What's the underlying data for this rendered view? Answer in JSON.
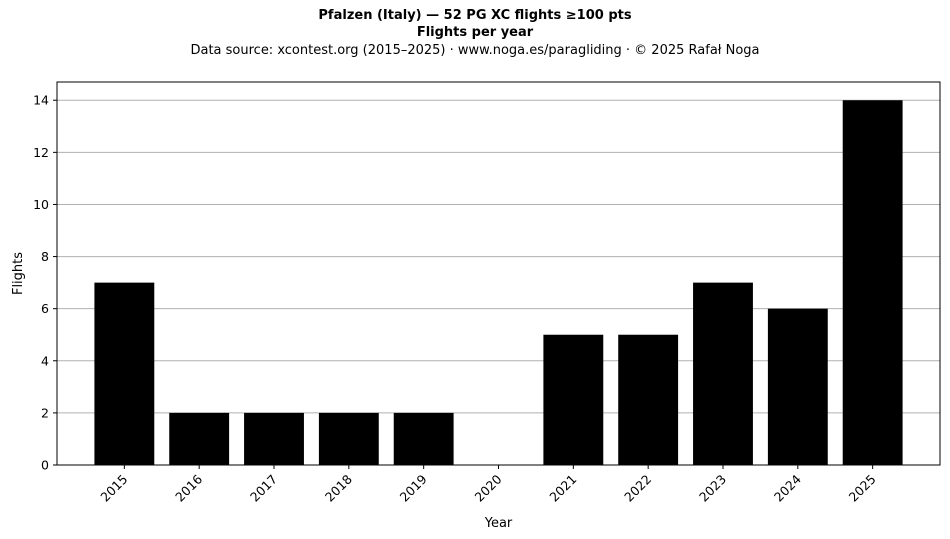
{
  "chart_data": {
    "type": "bar",
    "title": "Pfalzen (Italy)  —  52 PG XC flights ≥100 pts",
    "subtitle": "Flights per year",
    "source_note": "Data source: xcontest.org (2015–2025)  ·  www.noga.es/paragliding  ·  © 2025 Rafał Noga",
    "xlabel": "Year",
    "ylabel": "Flights",
    "categories": [
      "2015",
      "2016",
      "2017",
      "2018",
      "2019",
      "2020",
      "2021",
      "2022",
      "2023",
      "2024",
      "2025"
    ],
    "values": [
      7,
      2,
      2,
      2,
      2,
      0,
      5,
      5,
      7,
      6,
      14
    ],
    "ylim": [
      0,
      14.7
    ],
    "yticks": [
      0,
      2,
      4,
      6,
      8,
      10,
      12,
      14
    ],
    "grid": "y",
    "legend": "none",
    "bar_color": "#000000",
    "grid_color": "#b0b0b0"
  }
}
